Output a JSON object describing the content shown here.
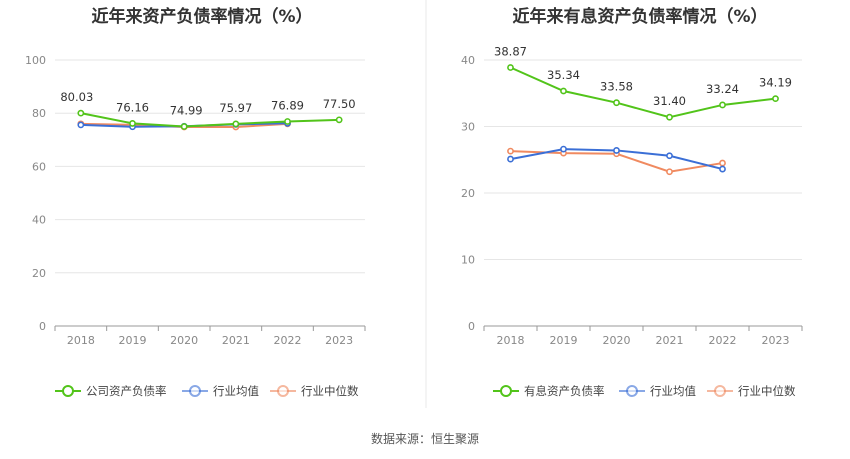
{
  "chart_data": [
    {
      "type": "line",
      "title": "近年来资产负债率情况（%）",
      "categories": [
        "2018",
        "2019",
        "2020",
        "2021",
        "2022",
        "2023"
      ],
      "ylim": [
        0,
        100
      ],
      "yticks": [
        0,
        20,
        40,
        60,
        80,
        100
      ],
      "grid": true,
      "legend_position": "bottom",
      "series": [
        {
          "name": "公司资产负债率",
          "color": "#52c41a",
          "values": [
            80.03,
            76.16,
            74.99,
            75.97,
            76.89,
            77.5
          ],
          "labels": [
            "80.03",
            "76.16",
            "74.99",
            "75.97",
            "76.89",
            "77.50"
          ]
        },
        {
          "name": "行业均值",
          "color": "#3b6fd6",
          "values": [
            75.6,
            74.9,
            75.1,
            75.8,
            76.2,
            null
          ]
        },
        {
          "name": "行业中位数",
          "color": "#f08a60",
          "values": [
            76.0,
            75.6,
            74.8,
            74.8,
            76.0,
            null
          ]
        }
      ]
    },
    {
      "type": "line",
      "title": "近年来有息资产负债率情况（%）",
      "categories": [
        "2018",
        "2019",
        "2020",
        "2021",
        "2022",
        "2023"
      ],
      "ylim": [
        0,
        40
      ],
      "yticks": [
        0,
        10,
        20,
        30,
        40
      ],
      "grid": true,
      "legend_position": "bottom",
      "series": [
        {
          "name": "有息资产负债率",
          "color": "#52c41a",
          "values": [
            38.87,
            35.34,
            33.58,
            31.4,
            33.24,
            34.19
          ],
          "labels": [
            "38.87",
            "35.34",
            "33.58",
            "31.40",
            "33.24",
            "34.19"
          ]
        },
        {
          "name": "行业均值",
          "color": "#3b6fd6",
          "values": [
            25.1,
            26.6,
            26.4,
            25.6,
            23.6,
            null
          ]
        },
        {
          "name": "行业中位数",
          "color": "#f08a60",
          "values": [
            26.3,
            26.0,
            25.9,
            23.2,
            24.5,
            null
          ]
        }
      ]
    }
  ],
  "footer": {
    "source": "数据来源：恒生聚源"
  }
}
